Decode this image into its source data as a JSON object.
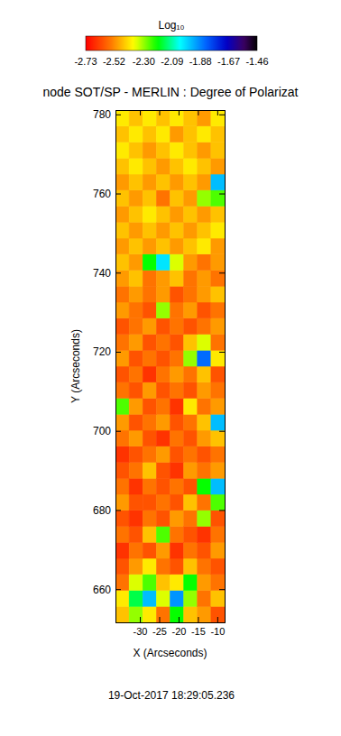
{
  "chart_data": {
    "type": "heatmap",
    "title": "node SOT/SP - MERLIN : Degree of Polarizat",
    "x_label": "X (Arcseconds)",
    "y_label": "Y (Arcseconds)",
    "annotations": [
      "19-Oct-2017 18:29:05.236"
    ],
    "xlim": [
      -36.3,
      -8.1
    ],
    "ylim": [
      651.6,
      781.1
    ],
    "xticks": [
      -30,
      -25,
      -20,
      -15,
      -10
    ],
    "yticks": [
      660,
      680,
      700,
      720,
      740,
      760,
      780
    ],
    "x": [
      -34.54,
      -31.01,
      -27.49,
      -23.96,
      -20.44,
      -16.91,
      -13.39,
      -9.86
    ],
    "y": [
      653.62,
      657.67,
      661.72,
      665.76,
      669.81,
      673.86,
      677.9,
      681.95,
      686.0,
      690.04,
      694.09,
      698.14,
      702.18,
      706.23,
      710.28,
      714.32,
      718.37,
      722.42,
      726.46,
      730.51,
      734.56,
      738.6,
      742.65,
      746.7,
      750.74,
      754.79,
      758.84,
      762.88,
      766.93,
      770.98,
      775.02,
      779.07
    ],
    "z": [
      [
        -2.45,
        -2.3,
        -2.4,
        -2.55,
        -2.2,
        -2.45,
        -2.5,
        -2.6
      ],
      [
        -2.4,
        -2.15,
        -1.95,
        -2.35,
        -1.9,
        -2.3,
        -2.55,
        -2.45
      ],
      [
        -2.55,
        -2.35,
        -2.25,
        -2.45,
        -2.4,
        -2.2,
        -2.5,
        -2.55
      ],
      [
        -2.6,
        -2.5,
        -2.4,
        -2.55,
        -2.6,
        -2.45,
        -2.55,
        -2.6
      ],
      [
        -2.65,
        -2.55,
        -2.6,
        -2.5,
        -2.65,
        -2.55,
        -2.6,
        -2.5
      ],
      [
        -2.55,
        -2.6,
        -2.45,
        -2.25,
        -2.55,
        -2.6,
        -2.65,
        -2.55
      ],
      [
        -2.6,
        -2.65,
        -2.55,
        -2.6,
        -2.5,
        -2.55,
        -2.3,
        -2.6
      ],
      [
        -2.5,
        -2.6,
        -2.6,
        -2.55,
        -2.6,
        -2.45,
        -2.55,
        -2.25
      ],
      [
        -2.55,
        -2.65,
        -2.55,
        -2.6,
        -2.55,
        -2.6,
        -2.2,
        -1.95
      ],
      [
        -2.6,
        -2.55,
        -2.45,
        -2.6,
        -2.65,
        -2.5,
        -2.55,
        -2.5
      ],
      [
        -2.65,
        -2.6,
        -2.55,
        -2.5,
        -2.6,
        -2.55,
        -2.6,
        -2.55
      ],
      [
        -2.55,
        -2.5,
        -2.6,
        -2.65,
        -2.55,
        -2.6,
        -2.5,
        -2.45
      ],
      [
        -2.5,
        -2.6,
        -2.55,
        -2.5,
        -2.6,
        -2.55,
        -2.45,
        -1.95
      ],
      [
        -2.25,
        -2.5,
        -2.6,
        -2.55,
        -2.65,
        -2.4,
        -2.55,
        -2.5
      ],
      [
        -2.55,
        -2.6,
        -2.5,
        -2.6,
        -2.55,
        -2.6,
        -2.5,
        -2.55
      ],
      [
        -2.6,
        -2.55,
        -2.65,
        -2.55,
        -2.5,
        -2.55,
        -2.45,
        -2.6
      ],
      [
        -2.5,
        -2.6,
        -2.55,
        -2.6,
        -2.55,
        -2.3,
        -1.85,
        -2.4
      ],
      [
        -2.55,
        -2.5,
        -2.6,
        -2.55,
        -2.6,
        -2.45,
        -2.35,
        -2.55
      ],
      [
        -2.6,
        -2.55,
        -2.5,
        -2.6,
        -2.55,
        -2.6,
        -2.55,
        -2.5
      ],
      [
        -2.5,
        -2.55,
        -2.6,
        -2.3,
        -2.55,
        -2.5,
        -2.6,
        -2.55
      ],
      [
        -2.55,
        -2.5,
        -2.55,
        -2.5,
        -2.6,
        -2.55,
        -2.5,
        -2.45
      ],
      [
        -2.5,
        -2.45,
        -2.55,
        -2.5,
        -2.45,
        -2.55,
        -2.5,
        -2.55
      ],
      [
        -2.45,
        -2.5,
        -2.2,
        -2.0,
        -2.35,
        -2.5,
        -2.55,
        -2.5
      ],
      [
        -2.5,
        -2.45,
        -2.5,
        -2.45,
        -2.5,
        -2.45,
        -2.4,
        -2.5
      ],
      [
        -2.45,
        -2.5,
        -2.45,
        -2.5,
        -2.45,
        -2.5,
        -2.45,
        -2.4
      ],
      [
        -2.5,
        -2.45,
        -2.4,
        -2.45,
        -2.5,
        -2.45,
        -2.5,
        -2.45
      ],
      [
        -2.45,
        -2.5,
        -2.45,
        -2.55,
        -2.45,
        -2.5,
        -2.3,
        -2.25
      ],
      [
        -2.5,
        -2.45,
        -2.5,
        -2.45,
        -2.5,
        -2.45,
        -2.5,
        -1.95
      ],
      [
        -2.45,
        -2.4,
        -2.45,
        -2.5,
        -2.45,
        -2.4,
        -2.45,
        -2.5
      ],
      [
        -2.4,
        -2.45,
        -2.5,
        -2.45,
        -2.4,
        -2.45,
        -2.5,
        -2.45
      ],
      [
        -2.45,
        -2.4,
        -2.45,
        -2.4,
        -2.5,
        -2.45,
        -2.4,
        -2.45
      ],
      [
        -2.4,
        -2.45,
        -2.4,
        -2.45,
        -2.4,
        -2.45,
        -2.5,
        -2.4
      ]
    ],
    "colorbar": {
      "label": "Log₁₀",
      "range": [
        -2.73,
        -1.46
      ],
      "ticks": [
        -2.73,
        -2.52,
        {
          "value": -2.3,
          "label": "-2.30"
        },
        -2.09,
        -1.88,
        -1.67,
        -1.46
      ]
    }
  }
}
